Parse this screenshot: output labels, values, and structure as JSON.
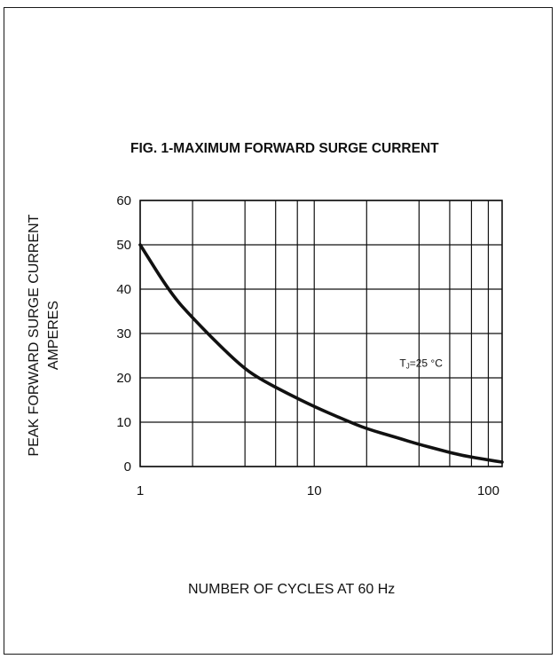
{
  "chart_data": {
    "type": "line",
    "title": "FIG. 1-MAXIMUM FORWARD SURGE CURRENT",
    "ylabel_lines": [
      "PEAK FORWARD SURGE CURRENT",
      "AMPERES"
    ],
    "xlabel": "NUMBER OF CYCLES AT 60 Hz",
    "x_scale": "log",
    "xlim": [
      1,
      120
    ],
    "ylim": [
      0,
      60
    ],
    "x_ticks": [
      1,
      10,
      100
    ],
    "x_tick_labels": [
      "1",
      "10",
      "100"
    ],
    "y_ticks": [
      0,
      10,
      20,
      30,
      40,
      50,
      60
    ],
    "y_tick_labels": [
      "0",
      "10",
      "20",
      "30",
      "40",
      "50",
      "60"
    ],
    "grid": true,
    "series": [
      {
        "x": [
          1,
          1.5,
          2,
          3,
          4,
          5,
          7,
          10,
          15,
          20,
          30,
          40,
          50,
          70,
          100,
          120
        ],
        "y": [
          50,
          39,
          33.5,
          26.5,
          22,
          19.5,
          16.5,
          13.5,
          10.5,
          8.5,
          6.5,
          5,
          4,
          2.5,
          1.5,
          1
        ]
      }
    ],
    "annotations": [
      {
        "text": "TJ=25 °C",
        "main": "T",
        "subscript": "J",
        "rest": "=25 °C",
        "x": 40,
        "y": 22.5
      }
    ]
  }
}
